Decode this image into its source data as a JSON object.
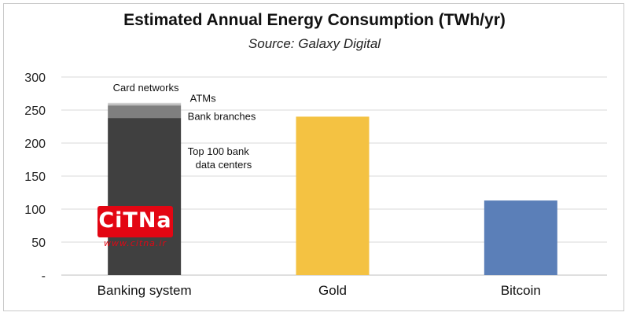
{
  "chart_data": {
    "type": "bar",
    "stacked": true,
    "title": "Estimated Annual Energy Consumption (TWh/yr)",
    "subtitle": "Source: Galaxy Digital",
    "xlabel": "",
    "ylabel": "",
    "ylim": [
      0,
      300
    ],
    "yticks": [
      "-",
      "50",
      "100",
      "150",
      "200",
      "250",
      "300"
    ],
    "grid": true,
    "categories": [
      "Banking system",
      "Gold",
      "Bitcoin"
    ],
    "series": [
      {
        "name": "Top 100 bank data centers",
        "values": [
          238,
          0,
          0
        ],
        "color": "#404040"
      },
      {
        "name": "Bank branches",
        "values": [
          19,
          0,
          0
        ],
        "color": "#7f7f7f"
      },
      {
        "name": "ATMs",
        "values": [
          3,
          0,
          0
        ],
        "color": "#bfbfbf"
      },
      {
        "name": "Card networks",
        "values": [
          1,
          0,
          0
        ],
        "color": "#d9d9d9"
      },
      {
        "name": "Gold",
        "values": [
          0,
          240,
          0
        ],
        "color": "#f4c242"
      },
      {
        "name": "Bitcoin",
        "values": [
          0,
          0,
          113
        ],
        "color": "#5b7fb8"
      }
    ],
    "annotations": [
      {
        "text": "Card networks",
        "series": "Card networks"
      },
      {
        "text": "ATMs",
        "series": "ATMs"
      },
      {
        "text": "Bank branches",
        "series": "Bank branches"
      },
      {
        "text": "Top 100 bank data centers",
        "lines": [
          "Top 100 bank",
          "data centers"
        ],
        "series": "Top 100 bank data centers"
      }
    ]
  },
  "watermark": {
    "logo_text": "CITNA",
    "url": "www.citna.ir"
  }
}
